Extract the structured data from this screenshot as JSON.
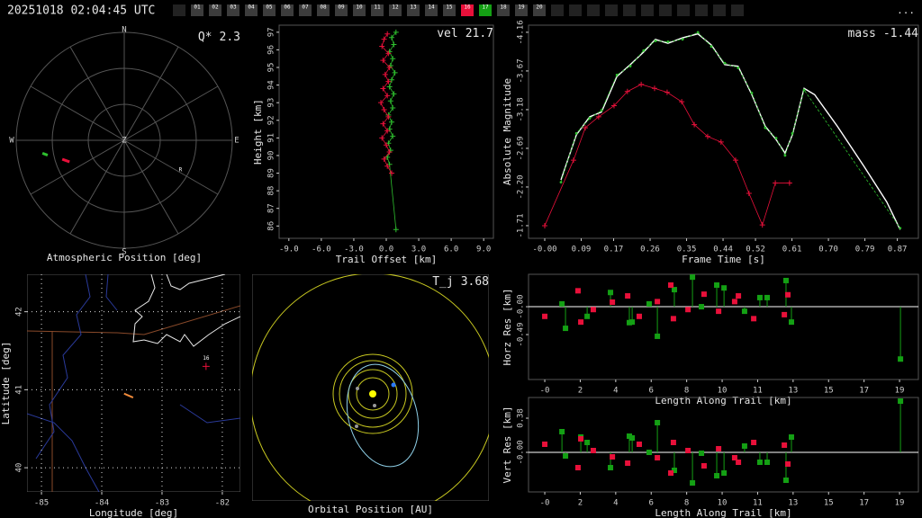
{
  "header": {
    "timestamp": "20251018 02:04:45 UTC",
    "stations": [
      "01",
      "02",
      "03",
      "04",
      "05",
      "06",
      "07",
      "08",
      "09",
      "10",
      "11",
      "12",
      "13",
      "14",
      "15",
      "16",
      "17",
      "18",
      "19",
      "20"
    ],
    "station_colors": [
      "#3c3c3c",
      "#3c3c3c",
      "#3c3c3c",
      "#3c3c3c",
      "#3c3c3c",
      "#3c3c3c",
      "#3c3c3c",
      "#3c3c3c",
      "#3c3c3c",
      "#3c3c3c",
      "#3c3c3c",
      "#3c3c3c",
      "#3c3c3c",
      "#3c3c3c",
      "#3c3c3c",
      "#e8103a",
      "#14a014",
      "#3c3c3c",
      "#3c3c3c",
      "#3c3c3c"
    ],
    "menu": "..."
  },
  "chart_data": [
    {
      "type": "polar",
      "title": "Atmospheric Position [deg]",
      "direction_labels": [
        "N",
        "E",
        "S",
        "W"
      ],
      "center_label": "Z",
      "rlim": [
        0,
        90
      ],
      "rticks": [
        30,
        60,
        90
      ],
      "angle_ticks": [
        0,
        30,
        60,
        90,
        120,
        150,
        180,
        210,
        240,
        270,
        300,
        330
      ],
      "annotation": {
        "label": "Q*",
        "value": 2.3
      },
      "series": [
        {
          "color": "#2ec02e",
          "azimuth": [
            261,
            259
          ],
          "zenith": [
            69,
            65
          ]
        },
        {
          "color": "#e8103a",
          "azimuth": [
            253,
            248.5
          ],
          "zenith": [
            54,
            49
          ]
        }
      ],
      "markers": [
        {
          "label": "R",
          "azimuth": 118,
          "zenith": 53
        }
      ]
    },
    {
      "type": "scatter",
      "xlabel": "Trail Offset [km]",
      "ylabel": "Height [km]",
      "annotation": {
        "label": "vel",
        "value": 21.7
      },
      "xlim": [
        -9.9,
        9.9
      ],
      "ylim": [
        85.3,
        97.4
      ],
      "xticks": [
        {
          "value": -9,
          "label": "-9.0"
        },
        {
          "value": -6,
          "label": "-6.0"
        },
        {
          "value": -3,
          "label": "-3.0"
        },
        {
          "value": 0,
          "label": "0.0"
        },
        {
          "value": 3,
          "label": "3.0"
        },
        {
          "value": 6,
          "label": "6.0"
        },
        {
          "value": 9,
          "label": "9.0"
        }
      ],
      "yticks": [
        86,
        87,
        88,
        89,
        90,
        91,
        92,
        93,
        94,
        95,
        96,
        97
      ],
      "series": [
        {
          "color": "#2ec02e",
          "marker": "+",
          "line": "solid",
          "x": [
            0.9,
            0.5,
            0.7,
            0.3,
            0.6,
            0.4,
            0.8,
            0.5,
            0.3,
            0.7,
            0.4,
            0.6,
            0.2,
            0.5,
            0.3,
            0.6,
            0.2,
            0.4,
            0.1,
            0.3,
            0.9
          ],
          "values": [
            97.0,
            96.7,
            96.3,
            95.9,
            95.5,
            95.1,
            94.7,
            94.3,
            93.9,
            93.5,
            93.1,
            92.7,
            92.3,
            91.9,
            91.5,
            91.1,
            90.7,
            90.3,
            89.9,
            89.5,
            85.8
          ]
        },
        {
          "color": "#e8103a",
          "marker": "+",
          "line": "solid",
          "x": [
            0.1,
            -0.2,
            -0.4,
            0.2,
            -0.3,
            0.3,
            -0.1,
            0.2,
            -0.3,
            0.1,
            -0.5,
            -0.2,
            0.2,
            -0.3,
            0.1,
            -0.4,
            0.0,
            0.3,
            -0.2,
            0.1,
            0.5
          ],
          "values": [
            96.9,
            96.6,
            96.2,
            95.8,
            95.4,
            95.0,
            94.6,
            94.2,
            93.8,
            93.4,
            93.0,
            92.6,
            92.2,
            91.8,
            91.4,
            91.0,
            90.6,
            90.2,
            89.8,
            89.4,
            89.0
          ]
        }
      ]
    },
    {
      "type": "line",
      "xlabel": "Frame Time [s]",
      "ylabel": "Absolute Magnitude",
      "annotation": {
        "label": "mass",
        "value": -1.44
      },
      "xlim": [
        -0.04,
        0.922
      ],
      "ylim": [
        -1.55,
        -4.25
      ],
      "xticks": [
        {
          "value": 0,
          "label": "-0.00"
        },
        0.09,
        0.17,
        0.26,
        0.35,
        0.44,
        0.52,
        0.61,
        {
          "value": 0.7,
          "label": "0.70"
        },
        0.79,
        0.87
      ],
      "yticks": [
        -4.16,
        -3.67,
        -3.18,
        -2.69,
        {
          "value": -2.2,
          "label": "-2.20"
        },
        -1.71
      ],
      "series": [
        {
          "color": "#ffffff",
          "marker": null,
          "line": "solid",
          "x": [
            0.04,
            0.078,
            0.111,
            0.14,
            0.178,
            0.211,
            0.244,
            0.273,
            0.304,
            0.34,
            0.378,
            0.411,
            0.444,
            0.477,
            0.511,
            0.544,
            0.571,
            0.593,
            0.611,
            0.64,
            0.666,
            0.722,
            0.788,
            0.844,
            0.877
          ],
          "values": [
            -2.29,
            -2.86,
            -3.09,
            -3.15,
            -3.6,
            -3.75,
            -3.91,
            -4.07,
            -4.02,
            -4.09,
            -4.14,
            -4.0,
            -3.75,
            -3.73,
            -3.37,
            -2.97,
            -2.8,
            -2.63,
            -2.86,
            -3.45,
            -3.37,
            -2.97,
            -2.46,
            -2.01,
            -1.66
          ]
        },
        {
          "color": "#2ec02e",
          "marker": "dot",
          "line": "dashed",
          "x": [
            0.04,
            0.078,
            0.111,
            0.14,
            0.178,
            0.211,
            0.244,
            0.273,
            0.304,
            0.34,
            0.378,
            0.411,
            0.444,
            0.477,
            0.511,
            0.544,
            0.571,
            0.593,
            0.611,
            0.64,
            0.877
          ],
          "values": [
            -2.26,
            -2.88,
            -3.07,
            -3.17,
            -3.62,
            -3.73,
            -3.93,
            -4.05,
            -4.04,
            -4.07,
            -4.16,
            -3.98,
            -3.77,
            -3.71,
            -3.39,
            -2.95,
            -2.82,
            -2.6,
            -2.88,
            -3.43,
            -1.68
          ]
        },
        {
          "color": "#e8103a",
          "marker": "+",
          "line": "solid",
          "x": [
            0,
            0.071,
            0.1,
            0.133,
            0.171,
            0.204,
            0.238,
            0.271,
            0.302,
            0.338,
            0.369,
            0.402,
            0.435,
            0.471,
            0.504,
            0.537,
            0.569,
            0.604
          ],
          "values": [
            -1.71,
            -2.54,
            -2.95,
            -3.09,
            -3.23,
            -3.41,
            -3.5,
            -3.45,
            -3.4,
            -3.28,
            -2.99,
            -2.84,
            -2.77,
            -2.54,
            -2.12,
            -1.72,
            -2.25,
            -2.25
          ]
        }
      ]
    },
    {
      "type": "map",
      "xlabel": "Longitude [deg]",
      "ylabel": "Latitude [deg]",
      "xlim": [
        -85.24,
        -81.7
      ],
      "ylim": [
        39.69,
        42.48
      ],
      "xticks": [
        -85,
        -84,
        -83,
        -82
      ],
      "yticks": [
        40,
        41,
        42
      ],
      "grid": true,
      "series": [
        {
          "color": "#f08a3a",
          "x": [
            -83.63,
            -83.48
          ],
          "values": [
            40.95,
            40.9
          ]
        }
      ],
      "markers": [
        {
          "label": "16",
          "color": "#e8103a",
          "x": -82.27,
          "y": 41.3
        }
      ]
    },
    {
      "type": "orbit",
      "title": "Orbital Position [AU]",
      "annotation": {
        "label": "T_j",
        "value": 3.68
      }
    },
    {
      "type": "stem",
      "xlabel": "Length Along Trail [km]",
      "ylabel": "Horz Res [km]",
      "xlim": [
        -0.87,
        20.01
      ],
      "ylim": [
        -1.28,
        0.57
      ],
      "xticks": [
        {
          "value": 0,
          "label": "-0"
        },
        {
          "value": 1.9,
          "label": "2"
        },
        {
          "value": 3.8,
          "label": "4"
        },
        {
          "value": 5.7,
          "label": "6"
        },
        {
          "value": 7.6,
          "label": "8"
        },
        {
          "value": 9.5,
          "label": "10"
        },
        {
          "value": 11.4,
          "label": "11"
        },
        {
          "value": 13.3,
          "label": "13"
        },
        {
          "value": 15.2,
          "label": "15"
        },
        {
          "value": 17.1,
          "label": "17"
        },
        19
      ],
      "yticks": [
        -0.49,
        {
          "value": 0,
          "label": "-0.00"
        }
      ],
      "series": [
        {
          "color": "#14a014",
          "marker": "square",
          "stem": true,
          "x": [
            0.92,
            1.11,
            2.27,
            3.52,
            4.53,
            4.68,
            5.59,
            6.03,
            6.94,
            7.91,
            8.39,
            9.21,
            9.6,
            10.7,
            11.52,
            11.91,
            12.92,
            13.21,
            19.05
          ],
          "values": [
            0.05,
            -0.38,
            -0.17,
            0.25,
            -0.28,
            -0.27,
            0.05,
            -0.52,
            0.3,
            0.52,
            0.0,
            0.38,
            0.33,
            -0.08,
            0.16,
            0.16,
            0.46,
            -0.27,
            -0.92
          ]
        },
        {
          "color": "#e8103a",
          "marker": "square",
          "stem": false,
          "x": [
            0.0,
            1.78,
            1.93,
            2.6,
            3.62,
            4.44,
            5.06,
            6.03,
            6.75,
            6.89,
            7.67,
            8.53,
            9.31,
            10.17,
            10.37,
            11.19,
            12.83,
            13.02
          ],
          "values": [
            -0.17,
            0.28,
            -0.27,
            -0.05,
            0.08,
            0.19,
            -0.17,
            0.09,
            0.38,
            -0.21,
            -0.05,
            0.22,
            -0.08,
            0.09,
            0.19,
            -0.21,
            -0.14,
            0.21
          ]
        }
      ]
    },
    {
      "type": "stem",
      "xlabel": "Length Along Trail [km]",
      "ylabel": "Vert Res [km]",
      "xlim": [
        -0.87,
        20.01
      ],
      "ylim": [
        -0.44,
        0.61
      ],
      "xticks": [
        {
          "value": 0,
          "label": "-0"
        },
        {
          "value": 1.9,
          "label": "2"
        },
        {
          "value": 3.8,
          "label": "4"
        },
        {
          "value": 5.7,
          "label": "6"
        },
        {
          "value": 7.6,
          "label": "8"
        },
        {
          "value": 9.5,
          "label": "10"
        },
        {
          "value": 11.4,
          "label": "11"
        },
        {
          "value": 13.3,
          "label": "13"
        },
        {
          "value": 15.2,
          "label": "15"
        },
        {
          "value": 17.1,
          "label": "17"
        },
        19
      ],
      "yticks": [
        {
          "value": 0,
          "label": "-0.00"
        },
        0.38
      ],
      "series": [
        {
          "color": "#14a014",
          "marker": "square",
          "stem": true,
          "x": [
            0.92,
            1.11,
            1.93,
            2.27,
            3.52,
            4.53,
            4.68,
            5.59,
            6.03,
            6.94,
            7.91,
            8.39,
            9.21,
            9.6,
            10.7,
            11.52,
            11.91,
            12.92,
            13.21,
            19.05
          ],
          "values": [
            0.23,
            -0.04,
            0.17,
            0.11,
            -0.17,
            0.18,
            0.16,
            0.0,
            0.33,
            -0.2,
            -0.34,
            -0.01,
            -0.26,
            -0.23,
            0.07,
            -0.11,
            -0.11,
            -0.31,
            0.17,
            0.57
          ]
        },
        {
          "color": "#e8103a",
          "marker": "square",
          "stem": false,
          "x": [
            0.0,
            1.78,
            1.93,
            2.6,
            3.62,
            4.44,
            5.06,
            6.03,
            6.75,
            6.89,
            7.67,
            8.53,
            9.31,
            10.17,
            10.37,
            11.19,
            12.83,
            13.02
          ],
          "values": [
            0.09,
            -0.17,
            0.15,
            0.02,
            -0.05,
            -0.12,
            0.09,
            -0.06,
            -0.23,
            0.11,
            0.02,
            -0.15,
            0.04,
            -0.06,
            -0.11,
            0.11,
            0.08,
            -0.13
          ]
        }
      ]
    }
  ]
}
